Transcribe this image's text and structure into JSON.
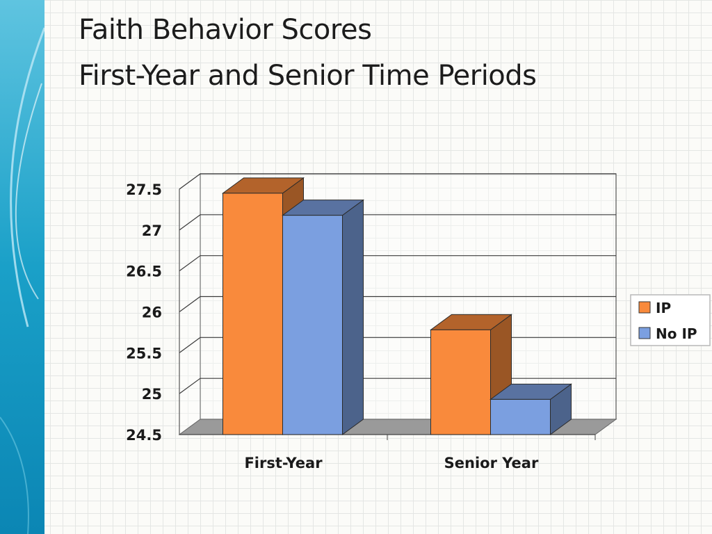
{
  "slide": {
    "title_line_1": "Faith Behavior Scores",
    "title_line_2": "First-Year and Senior Time Periods"
  },
  "colors": {
    "ip": "#f98a3c",
    "no_ip": "#7b9fe0",
    "band": "#1aa0c8"
  },
  "chart_data": {
    "type": "bar",
    "categories": [
      "First-Year",
      "Senior Year"
    ],
    "series": [
      {
        "name": "IP",
        "values": [
          27.45,
          25.78
        ]
      },
      {
        "name": "No IP",
        "values": [
          27.18,
          24.93
        ]
      }
    ],
    "yticks": [
      "24.5",
      "25",
      "25.5",
      "26",
      "26.5",
      "27",
      "27.5"
    ],
    "ylim": [
      24.5,
      27.5
    ],
    "grid": true,
    "legend": "right",
    "xlabel": "",
    "ylabel": ""
  }
}
